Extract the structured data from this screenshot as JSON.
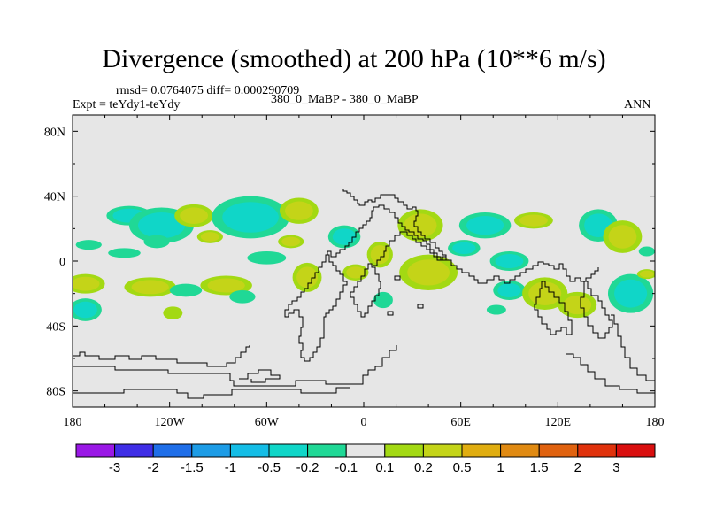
{
  "chart_data": {
    "type": "heatmap",
    "title": "Divergence (smoothed) at 200 hPa (10**6 m/s)",
    "rmsd_label": "rmsd= 0.0764075 diff= 0.000290709",
    "expt_label": "Expt = teYdy1-teYdy",
    "case_label": "380_0_MaBP - 380_0_MaBP",
    "season_label": "ANN",
    "xlabel": "",
    "ylabel": "",
    "x_ticks": [
      "180",
      "120W",
      "60W",
      "0",
      "60E",
      "120E",
      "180"
    ],
    "y_ticks": [
      "80N",
      "40N",
      "0",
      "40S",
      "80S"
    ],
    "xlim": [
      -180,
      180
    ],
    "ylim": [
      -90,
      90
    ],
    "colorbar_labels": [
      "-3",
      "-2",
      "-1.5",
      "-1",
      "-0.5",
      "-0.2",
      "-0.1",
      "0.1",
      "0.2",
      "0.5",
      "1",
      "1.5",
      "2",
      "3"
    ],
    "colorbar_colors": [
      "#9a18e6",
      "#3f2ee6",
      "#1f6ee8",
      "#1d9ce6",
      "#14bde6",
      "#10d6c8",
      "#20d896",
      "#e6e6e6",
      "#a3d913",
      "#c4d418",
      "#e0ad10",
      "#e08a12",
      "#e0620f",
      "#e0320c",
      "#d90f0f"
    ],
    "background_color": "#e6e6e6",
    "features": [
      {
        "lon": -172,
        "lat": -14,
        "rx": 12,
        "ry": 6,
        "value": 0.25
      },
      {
        "lon": -172,
        "lat": -30,
        "rx": 10,
        "ry": 7,
        "value": -0.2
      },
      {
        "lon": -170,
        "lat": 10,
        "rx": 8,
        "ry": 3,
        "value": -0.15
      },
      {
        "lon": -145,
        "lat": 28,
        "rx": 14,
        "ry": 6,
        "value": -0.25
      },
      {
        "lon": -148,
        "lat": 5,
        "rx": 10,
        "ry": 3,
        "value": -0.15
      },
      {
        "lon": -132,
        "lat": -16,
        "rx": 16,
        "ry": 6,
        "value": 0.25
      },
      {
        "lon": -125,
        "lat": 22,
        "rx": 20,
        "ry": 11,
        "value": -0.35
      },
      {
        "lon": -128,
        "lat": 12,
        "rx": 8,
        "ry": 4,
        "value": -0.15
      },
      {
        "lon": -105,
        "lat": 28,
        "rx": 12,
        "ry": 7,
        "value": 0.35
      },
      {
        "lon": -95,
        "lat": 15,
        "rx": 8,
        "ry": 4,
        "value": 0.25
      },
      {
        "lon": -110,
        "lat": -18,
        "rx": 10,
        "ry": 4,
        "value": -0.15
      },
      {
        "lon": -85,
        "lat": -15,
        "rx": 16,
        "ry": 6,
        "value": 0.25
      },
      {
        "lon": -118,
        "lat": -32,
        "rx": 6,
        "ry": 4,
        "value": 0.15
      },
      {
        "lon": -70,
        "lat": 27,
        "rx": 24,
        "ry": 13,
        "value": -0.35
      },
      {
        "lon": -60,
        "lat": 2,
        "rx": 12,
        "ry": 4,
        "value": -0.15
      },
      {
        "lon": -40,
        "lat": 31,
        "rx": 12,
        "ry": 8,
        "value": 0.35
      },
      {
        "lon": -45,
        "lat": 12,
        "rx": 8,
        "ry": 4,
        "value": 0.2
      },
      {
        "lon": -35,
        "lat": -10,
        "rx": 9,
        "ry": 9,
        "value": 0.4
      },
      {
        "lon": -75,
        "lat": -22,
        "rx": 8,
        "ry": 4,
        "value": -0.15
      },
      {
        "lon": -12,
        "lat": 15,
        "rx": 10,
        "ry": 7,
        "value": -0.25
      },
      {
        "lon": -5,
        "lat": -7,
        "rx": 8,
        "ry": 5,
        "value": 0.25
      },
      {
        "lon": 10,
        "lat": 4,
        "rx": 8,
        "ry": 8,
        "value": 0.25
      },
      {
        "lon": 12,
        "lat": -24,
        "rx": 6,
        "ry": 5,
        "value": -0.15
      },
      {
        "lon": 35,
        "lat": 22,
        "rx": 14,
        "ry": 10,
        "value": 0.35
      },
      {
        "lon": 40,
        "lat": -7,
        "rx": 18,
        "ry": 11,
        "value": 0.35
      },
      {
        "lon": 62,
        "lat": 8,
        "rx": 10,
        "ry": 5,
        "value": -0.2
      },
      {
        "lon": 75,
        "lat": 22,
        "rx": 16,
        "ry": 8,
        "value": -0.25
      },
      {
        "lon": 90,
        "lat": 0,
        "rx": 12,
        "ry": 6,
        "value": -0.25
      },
      {
        "lon": 90,
        "lat": -18,
        "rx": 10,
        "ry": 6,
        "value": -0.25
      },
      {
        "lon": 82,
        "lat": -30,
        "rx": 6,
        "ry": 3,
        "value": -0.15
      },
      {
        "lon": 105,
        "lat": 25,
        "rx": 12,
        "ry": 5,
        "value": 0.2
      },
      {
        "lon": 112,
        "lat": -20,
        "rx": 14,
        "ry": 10,
        "value": 0.4
      },
      {
        "lon": 132,
        "lat": -27,
        "rx": 12,
        "ry": 8,
        "value": 0.45
      },
      {
        "lon": 145,
        "lat": 22,
        "rx": 12,
        "ry": 10,
        "value": -0.25
      },
      {
        "lon": 160,
        "lat": 15,
        "rx": 12,
        "ry": 10,
        "value": 0.3
      },
      {
        "lon": 165,
        "lat": -20,
        "rx": 14,
        "ry": 12,
        "value": -0.3
      },
      {
        "lon": 175,
        "lat": -8,
        "rx": 6,
        "ry": 3,
        "value": 0.2
      },
      {
        "lon": 175,
        "lat": 6,
        "rx": 5,
        "ry": 3,
        "value": -0.15
      }
    ]
  }
}
